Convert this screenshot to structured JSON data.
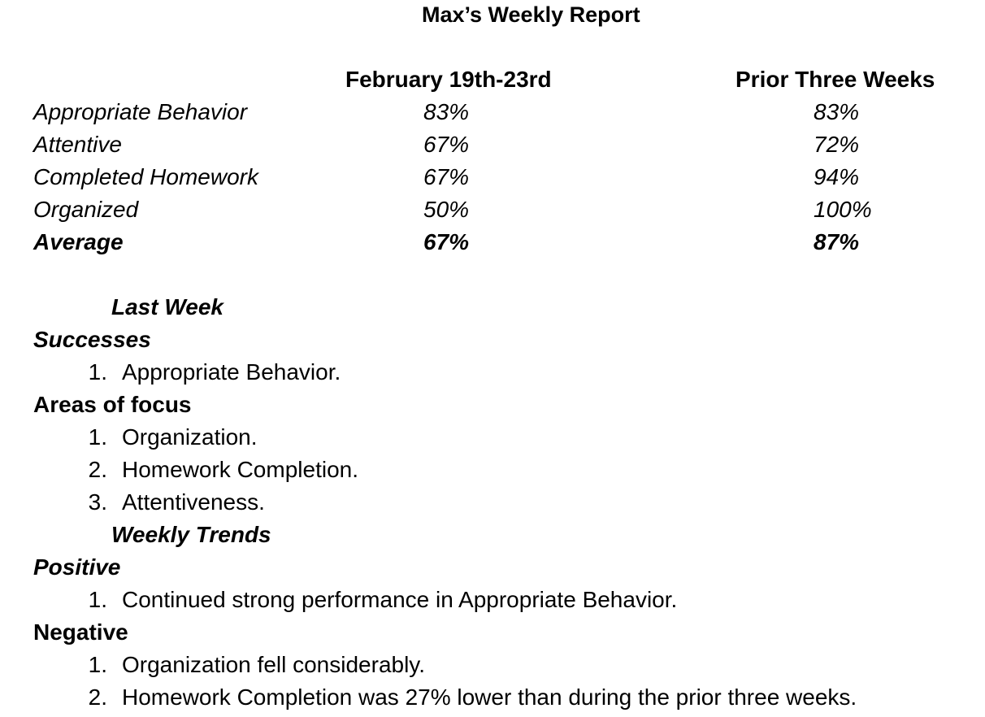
{
  "title": "Max’s Weekly Report",
  "table": {
    "columns": [
      "February 19th-23rd",
      "Prior Three Weeks"
    ],
    "rows": [
      {
        "label": "Appropriate Behavior",
        "current": "83%",
        "prior": "83%"
      },
      {
        "label": "Attentive",
        "current": "67%",
        "prior": "72%"
      },
      {
        "label": "Completed Homework",
        "current": "67%",
        "prior": "94%"
      },
      {
        "label": "Organized",
        "current": "50%",
        "prior": "100%"
      }
    ],
    "average": {
      "label": "Average",
      "current": "67%",
      "prior": "87%"
    }
  },
  "last_week": {
    "heading": "Last Week",
    "successes": {
      "heading": "Successes",
      "items": [
        "Appropriate Behavior."
      ]
    },
    "areas_of_focus": {
      "heading": "Areas of focus",
      "items": [
        "Organization.",
        "Homework Completion.",
        "Attentiveness."
      ]
    }
  },
  "weekly_trends": {
    "heading": "Weekly Trends",
    "positive": {
      "heading": "Positive",
      "items": [
        "Continued strong performance in Appropriate Behavior."
      ]
    },
    "negative": {
      "heading": "Negative",
      "items": [
        "Organization fell considerably.",
        "Homework Completion was 27% lower than during the prior three weeks."
      ]
    }
  },
  "list_numbers": [
    "1.",
    "2.",
    "3."
  ]
}
